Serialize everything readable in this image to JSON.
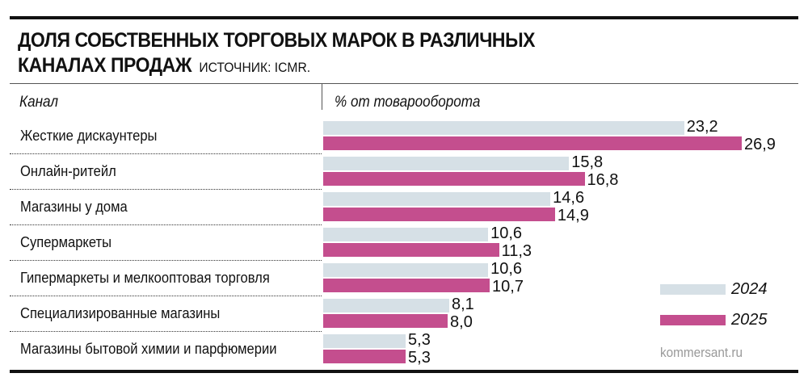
{
  "title_line1": "ДОЛЯ СОБСТВЕННЫХ ТОРГОВЫХ МАРОК В РАЗЛИЧНЫХ",
  "title_line2": "КАНАЛАХ ПРОДАЖ",
  "source": "ИСТОЧНИК: ICMR.",
  "credit": "kommersant.ru",
  "chart_data": {
    "type": "bar",
    "orientation": "horizontal",
    "xlabel": "% от товарооборота",
    "ylabel": "Канал",
    "xlim": [
      0,
      27
    ],
    "grid": false,
    "legend_position": "bottom-right",
    "categories": [
      "Жесткие дискаунтеры",
      "Онлайн-ритейл",
      "Магазины у дома",
      "Супермаркеты",
      "Гипермаркеты и мелкооптовая торговля",
      "Специализированные магазины",
      "Магазины бытовой химии и парфюмерии"
    ],
    "series": [
      {
        "name": "2024",
        "color": "#d6e0e6",
        "values": [
          23.2,
          15.8,
          14.6,
          10.6,
          10.6,
          8.1,
          5.3
        ],
        "labels": [
          "23,2",
          "15,8",
          "14,6",
          "10,6",
          "10,6",
          "8,1",
          "5,3"
        ]
      },
      {
        "name": "2025",
        "color": "#c44e8e",
        "values": [
          26.9,
          16.8,
          14.9,
          11.3,
          10.7,
          8.0,
          5.3
        ],
        "labels": [
          "26,9",
          "16,8",
          "14,9",
          "11,3",
          "10,7",
          "8,0",
          "5,3"
        ]
      }
    ]
  }
}
